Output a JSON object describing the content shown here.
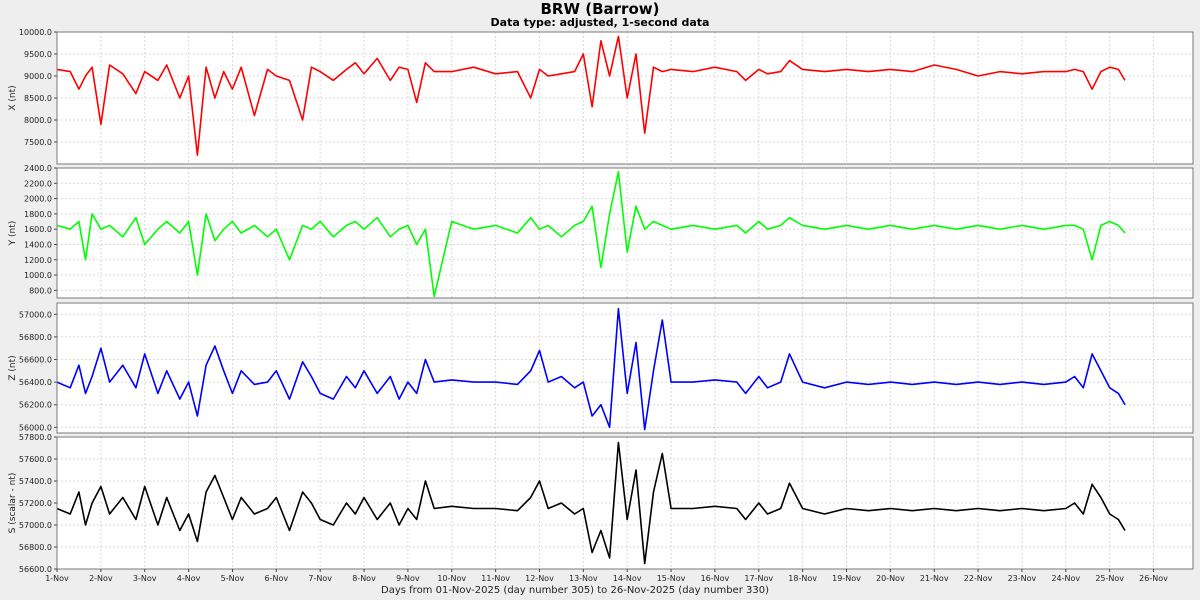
{
  "page": {
    "title": "BRW (Barrow)",
    "subtitle": "Data type: adjusted, 1-second data"
  },
  "chart_data": [
    {
      "type": "line",
      "ylabel": "X (nt)",
      "color": "#ff0000",
      "ylim": [
        7000,
        10000
      ],
      "yticks": [
        "7500.0",
        "8000.0",
        "8500.0",
        "9000.0",
        "9500.0",
        "10000.0"
      ],
      "x": [
        0,
        0.3,
        0.5,
        0.65,
        0.8,
        1.0,
        1.2,
        1.5,
        1.8,
        2.0,
        2.3,
        2.5,
        2.8,
        3.0,
        3.2,
        3.4,
        3.6,
        3.8,
        4.0,
        4.2,
        4.5,
        4.8,
        5.0,
        5.3,
        5.6,
        5.8,
        6.0,
        6.3,
        6.6,
        6.8,
        7.0,
        7.3,
        7.6,
        7.8,
        8.0,
        8.2,
        8.4,
        8.6,
        9.0,
        9.5,
        10.0,
        10.5,
        10.8,
        11.0,
        11.2,
        11.5,
        11.8,
        12.0,
        12.2,
        12.4,
        12.6,
        12.8,
        13.0,
        13.2,
        13.4,
        13.6,
        13.8,
        14.0,
        14.5,
        15.0,
        15.5,
        15.7,
        16.0,
        16.2,
        16.5,
        16.7,
        17.0,
        17.5,
        18.0,
        18.5,
        19.0,
        19.5,
        20.0,
        20.5,
        21.0,
        21.5,
        22.0,
        22.5,
        23.0,
        23.2,
        23.4,
        23.6,
        23.8,
        24.0,
        24.2,
        24.35
      ],
      "values": [
        9150,
        9100,
        8700,
        9000,
        9200,
        7900,
        9250,
        9050,
        8600,
        9100,
        8900,
        9250,
        8500,
        9000,
        7200,
        9200,
        8500,
        9100,
        8700,
        9200,
        8100,
        9150,
        9000,
        8900,
        8000,
        9200,
        9100,
        8900,
        9150,
        9300,
        9050,
        9400,
        8900,
        9200,
        9150,
        8400,
        9300,
        9100,
        9100,
        9200,
        9050,
        9100,
        8500,
        9150,
        9000,
        9050,
        9100,
        9500,
        8300,
        9800,
        9000,
        9900,
        8500,
        9500,
        7700,
        9200,
        9100,
        9150,
        9100,
        9200,
        9100,
        8900,
        9150,
        9050,
        9100,
        9350,
        9150,
        9100,
        9150,
        9100,
        9150,
        9100,
        9250,
        9150,
        9000,
        9100,
        9050,
        9100,
        9100,
        9150,
        9100,
        8700,
        9100,
        9200,
        9150,
        8900
      ]
    },
    {
      "type": "line",
      "ylabel": "Y (nt)",
      "color": "#00ff00",
      "ylim": [
        700,
        2400
      ],
      "yticks": [
        "800.0",
        "1000.0",
        "1200.0",
        "1400.0",
        "1600.0",
        "1800.0",
        "2000.0",
        "2200.0",
        "2400.0"
      ],
      "x": [
        0,
        0.3,
        0.5,
        0.65,
        0.8,
        1.0,
        1.2,
        1.5,
        1.8,
        2.0,
        2.3,
        2.5,
        2.8,
        3.0,
        3.2,
        3.4,
        3.6,
        3.8,
        4.0,
        4.2,
        4.5,
        4.8,
        5.0,
        5.3,
        5.6,
        5.8,
        6.0,
        6.3,
        6.6,
        6.8,
        7.0,
        7.3,
        7.6,
        7.8,
        8.0,
        8.2,
        8.4,
        8.6,
        9.0,
        9.5,
        10.0,
        10.5,
        10.8,
        11.0,
        11.2,
        11.5,
        11.8,
        12.0,
        12.2,
        12.4,
        12.6,
        12.8,
        13.0,
        13.2,
        13.4,
        13.6,
        13.8,
        14.0,
        14.5,
        15.0,
        15.5,
        15.7,
        16.0,
        16.2,
        16.5,
        16.7,
        17.0,
        17.5,
        18.0,
        18.5,
        19.0,
        19.5,
        20.0,
        20.5,
        21.0,
        21.5,
        22.0,
        22.5,
        23.0,
        23.2,
        23.4,
        23.6,
        23.8,
        24.0,
        24.2,
        24.35
      ],
      "values": [
        1650,
        1600,
        1700,
        1200,
        1800,
        1600,
        1650,
        1500,
        1750,
        1400,
        1600,
        1700,
        1550,
        1700,
        1000,
        1800,
        1450,
        1600,
        1700,
        1550,
        1650,
        1500,
        1600,
        1200,
        1650,
        1600,
        1700,
        1500,
        1650,
        1700,
        1600,
        1750,
        1500,
        1600,
        1650,
        1400,
        1600,
        720,
        1700,
        1600,
        1650,
        1550,
        1750,
        1600,
        1650,
        1500,
        1650,
        1700,
        1900,
        1100,
        1800,
        2350,
        1300,
        1900,
        1600,
        1700,
        1650,
        1600,
        1650,
        1600,
        1650,
        1550,
        1700,
        1600,
        1650,
        1750,
        1650,
        1600,
        1650,
        1600,
        1650,
        1600,
        1650,
        1600,
        1650,
        1600,
        1650,
        1600,
        1650,
        1650,
        1600,
        1200,
        1650,
        1700,
        1650,
        1550
      ]
    },
    {
      "type": "line",
      "ylabel": "Z (nt)",
      "color": "#0000ff",
      "ylim": [
        55950,
        57100
      ],
      "yticks": [
        "56000.0",
        "56200.0",
        "56400.0",
        "56600.0",
        "56800.0",
        "57000.0"
      ],
      "x": [
        0,
        0.3,
        0.5,
        0.65,
        0.8,
        1.0,
        1.2,
        1.5,
        1.8,
        2.0,
        2.3,
        2.5,
        2.8,
        3.0,
        3.2,
        3.4,
        3.6,
        3.8,
        4.0,
        4.2,
        4.5,
        4.8,
        5.0,
        5.3,
        5.6,
        5.8,
        6.0,
        6.3,
        6.6,
        6.8,
        7.0,
        7.3,
        7.6,
        7.8,
        8.0,
        8.2,
        8.4,
        8.6,
        9.0,
        9.5,
        10.0,
        10.5,
        10.8,
        11.0,
        11.2,
        11.5,
        11.8,
        12.0,
        12.2,
        12.4,
        12.6,
        12.8,
        13.0,
        13.2,
        13.4,
        13.6,
        13.8,
        14.0,
        14.5,
        15.0,
        15.5,
        15.7,
        16.0,
        16.2,
        16.5,
        16.7,
        17.0,
        17.5,
        18.0,
        18.5,
        19.0,
        19.5,
        20.0,
        20.5,
        21.0,
        21.5,
        22.0,
        22.5,
        23.0,
        23.2,
        23.4,
        23.6,
        23.8,
        24.0,
        24.2,
        24.35
      ],
      "values": [
        56400,
        56350,
        56550,
        56300,
        56450,
        56700,
        56400,
        56550,
        56350,
        56650,
        56300,
        56500,
        56250,
        56400,
        56100,
        56550,
        56720,
        56500,
        56300,
        56500,
        56380,
        56400,
        56500,
        56250,
        56580,
        56450,
        56300,
        56250,
        56450,
        56350,
        56500,
        56300,
        56450,
        56250,
        56400,
        56300,
        56600,
        56400,
        56420,
        56400,
        56400,
        56380,
        56500,
        56680,
        56400,
        56450,
        56350,
        56400,
        56100,
        56200,
        56000,
        57050,
        56300,
        56750,
        55980,
        56500,
        56950,
        56400,
        56400,
        56420,
        56400,
        56300,
        56450,
        56350,
        56400,
        56650,
        56400,
        56350,
        56400,
        56380,
        56400,
        56380,
        56400,
        56380,
        56400,
        56380,
        56400,
        56380,
        56400,
        56450,
        56350,
        56650,
        56500,
        56350,
        56300,
        56200
      ]
    },
    {
      "type": "line",
      "ylabel": "S (scalar - nt)",
      "color": "#000000",
      "ylim": [
        56600,
        57800
      ],
      "yticks": [
        "56600.0",
        "56800.0",
        "57000.0",
        "57200.0",
        "57400.0",
        "57600.0",
        "57800.0"
      ],
      "x": [
        0,
        0.3,
        0.5,
        0.65,
        0.8,
        1.0,
        1.2,
        1.5,
        1.8,
        2.0,
        2.3,
        2.5,
        2.8,
        3.0,
        3.2,
        3.4,
        3.6,
        3.8,
        4.0,
        4.2,
        4.5,
        4.8,
        5.0,
        5.3,
        5.6,
        5.8,
        6.0,
        6.3,
        6.6,
        6.8,
        7.0,
        7.3,
        7.6,
        7.8,
        8.0,
        8.2,
        8.4,
        8.6,
        9.0,
        9.5,
        10.0,
        10.5,
        10.8,
        11.0,
        11.2,
        11.5,
        11.8,
        12.0,
        12.2,
        12.4,
        12.6,
        12.8,
        13.0,
        13.2,
        13.4,
        13.6,
        13.8,
        14.0,
        14.5,
        15.0,
        15.5,
        15.7,
        16.0,
        16.2,
        16.5,
        16.7,
        17.0,
        17.5,
        18.0,
        18.5,
        19.0,
        19.5,
        20.0,
        20.5,
        21.0,
        21.5,
        22.0,
        22.5,
        23.0,
        23.2,
        23.4,
        23.6,
        23.8,
        24.0,
        24.2,
        24.35
      ],
      "values": [
        57150,
        57100,
        57300,
        57000,
        57200,
        57350,
        57100,
        57250,
        57050,
        57350,
        57000,
        57250,
        56950,
        57100,
        56850,
        57300,
        57450,
        57250,
        57050,
        57250,
        57100,
        57150,
        57250,
        56950,
        57300,
        57200,
        57050,
        57000,
        57200,
        57100,
        57250,
        57050,
        57200,
        57000,
        57150,
        57050,
        57400,
        57150,
        57170,
        57150,
        57150,
        57130,
        57250,
        57400,
        57150,
        57200,
        57100,
        57150,
        56750,
        56950,
        56700,
        57750,
        57050,
        57500,
        56650,
        57300,
        57650,
        57150,
        57150,
        57170,
        57150,
        57050,
        57200,
        57100,
        57150,
        57380,
        57150,
        57100,
        57150,
        57130,
        57150,
        57130,
        57150,
        57130,
        57150,
        57130,
        57150,
        57130,
        57150,
        57200,
        57100,
        57370,
        57250,
        57100,
        57050,
        56950
      ]
    }
  ],
  "x_axis": {
    "tick_labels": [
      "1-Nov",
      "2-Nov",
      "3-Nov",
      "4-Nov",
      "5-Nov",
      "6-Nov",
      "7-Nov",
      "8-Nov",
      "9-Nov",
      "10-Nov",
      "11-Nov",
      "12-Nov",
      "13-Nov",
      "14-Nov",
      "15-Nov",
      "16-Nov",
      "17-Nov",
      "18-Nov",
      "19-Nov",
      "20-Nov",
      "21-Nov",
      "22-Nov",
      "23-Nov",
      "24-Nov",
      "25-Nov",
      "26-Nov"
    ],
    "label": "Days from 01-Nov-2025 (day number 305) to 26-Nov-2025 (day number 330)",
    "xlim": [
      0,
      25.9
    ]
  }
}
